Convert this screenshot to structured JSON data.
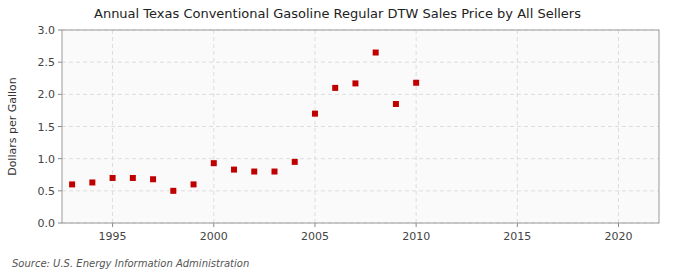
{
  "chart_data": {
    "type": "scatter",
    "title": "Annual Texas Conventional Gasoline Regular DTW Sales Price by All Sellers",
    "ylabel": "Dollars per Gallon",
    "annotations": [
      "Source: U.S. Energy Information Administration"
    ],
    "x": [
      1993,
      1994,
      1995,
      1996,
      1997,
      1998,
      1999,
      2000,
      2001,
      2002,
      2003,
      2004,
      2005,
      2006,
      2007,
      2008,
      2009,
      2010
    ],
    "values": [
      0.6,
      0.63,
      0.7,
      0.7,
      0.68,
      0.5,
      0.6,
      0.93,
      0.83,
      0.8,
      0.8,
      0.95,
      1.7,
      2.1,
      2.17,
      2.65,
      1.85,
      2.18
    ],
    "color": "#c00000",
    "marker": "square",
    "xlim": [
      1992.5,
      2022
    ],
    "ylim": [
      0.0,
      3.0
    ],
    "xticks": [
      1995,
      2000,
      2005,
      2010,
      2015,
      2020
    ],
    "yticks": [
      {
        "value": 0.0,
        "label": "0.0"
      },
      0.5,
      {
        "value": 1.0,
        "label": "1.0"
      },
      1.5,
      {
        "value": 2.0,
        "label": "2.0"
      },
      2.5,
      {
        "value": 3.0,
        "label": "3.0"
      }
    ],
    "grid": true
  }
}
